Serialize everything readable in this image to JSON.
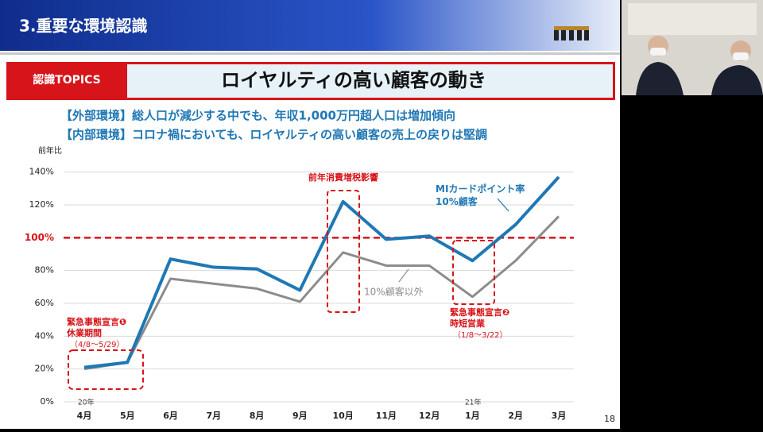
{
  "header": {
    "title": "3.重要な環境認識"
  },
  "topic": {
    "label": "認識TOPICS",
    "heading": "ロイヤルティの高い顧客の動き"
  },
  "subtitles": [
    "【外部環境】総人口が減少する中でも、年収1,000万円超人口は増加傾向",
    "【内部環境】コロナ禍においても、ロイヤルティの高い顧客の売上の戻りは堅調"
  ],
  "page_number": "18",
  "chart_data": {
    "type": "line",
    "ylabel": "前年比",
    "categories": [
      "4月",
      "5月",
      "6月",
      "7月",
      "8月",
      "9月",
      "10月",
      "11月",
      "12月",
      "1月",
      "2月",
      "3月"
    ],
    "series": [
      {
        "name": "MIカードポイント率\n10%顧客",
        "color": "#1f78b4",
        "values": [
          21,
          24,
          87,
          82,
          81,
          68,
          122,
          99,
          101,
          86,
          108,
          137
        ]
      },
      {
        "name": "10%顧客以外",
        "color": "#8c8c8c",
        "values": [
          20,
          24,
          75,
          72,
          69,
          61,
          91,
          83,
          83,
          64,
          86,
          113
        ]
      }
    ],
    "ylim": [
      0,
      150
    ],
    "yticks": [
      {
        "value": 0,
        "label": "0%"
      },
      {
        "value": 20,
        "label": "20%"
      },
      {
        "value": 40,
        "label": "40%"
      },
      {
        "value": 60,
        "label": "60%"
      },
      {
        "value": 80,
        "label": "80%"
      },
      {
        "value": 100,
        "label": "100%"
      },
      {
        "value": 120,
        "label": "120%"
      },
      {
        "value": 140,
        "label": "140%"
      }
    ],
    "grid": true,
    "reference_line": {
      "value": 100,
      "color": "#d7141a"
    },
    "year_labels": [
      "20年",
      "21年"
    ],
    "annotations": [
      "前年消費増税影響",
      "緊急事態宣言❶",
      "休業期間",
      "（4/8～5/29）",
      "緊急事態宣言❷",
      "時短営業",
      "（1/8～3/22）"
    ]
  }
}
